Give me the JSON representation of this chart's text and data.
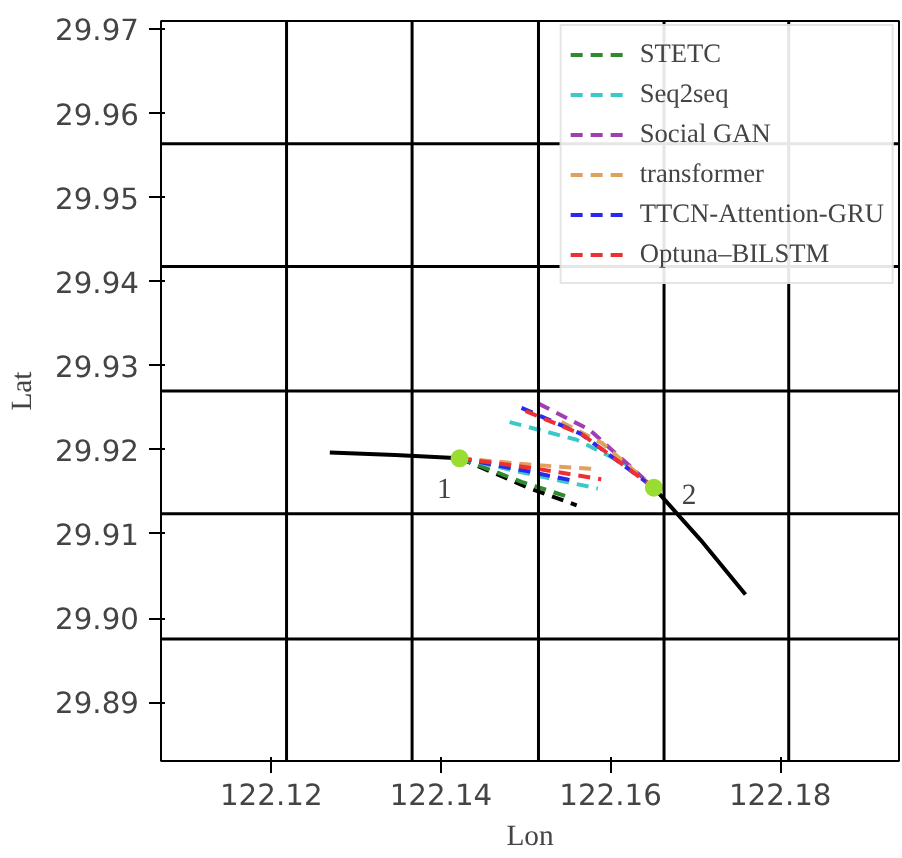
{
  "chart_data": {
    "type": "line",
    "xlabel": "Lon",
    "ylabel": "Lat",
    "xlim": [
      122.107,
      122.194
    ],
    "ylim": [
      29.883,
      29.971
    ],
    "xticks": [
      122.12,
      122.14,
      122.16,
      122.18
    ],
    "yticks": [
      {
        "value": 29.89,
        "label": "29.89"
      },
      {
        "value": 29.9,
        "label": "29.90"
      },
      {
        "value": 29.91,
        "label": "29.91"
      },
      {
        "value": 29.92,
        "label": "29.92"
      },
      {
        "value": 29.93,
        "label": "29.93"
      },
      {
        "value": 29.94,
        "label": "29.94"
      },
      {
        "value": 29.95,
        "label": "29.95"
      },
      {
        "value": 29.96,
        "label": "29.96"
      },
      {
        "value": 29.97,
        "label": "29.97"
      }
    ],
    "grid": false,
    "legend": "top right",
    "ref_lines": [
      {
        "axis": "x",
        "value": 122.1218,
        "color": "#000000"
      },
      {
        "axis": "x",
        "value": 122.1366,
        "color": "#000000"
      },
      {
        "axis": "x",
        "value": 122.1515,
        "color": "#000000"
      },
      {
        "axis": "x",
        "value": 122.1663,
        "color": "#000000"
      },
      {
        "axis": "x",
        "value": 122.181,
        "color": "#000000"
      },
      {
        "axis": "y",
        "value": 29.9564,
        "color": "#000000"
      },
      {
        "axis": "y",
        "value": 29.9418,
        "color": "#000000"
      },
      {
        "axis": "y",
        "value": 29.927,
        "color": "#000000"
      },
      {
        "axis": "y",
        "value": 29.9124,
        "color": "#000000"
      },
      {
        "axis": "y",
        "value": 29.8975,
        "color": "#000000"
      }
    ],
    "series": [
      {
        "color": "#000000",
        "line_style": "solid",
        "x": [
          122.1269,
          122.1346,
          122.1422,
          null,
          122.1651,
          122.1706,
          122.1759
        ],
        "values": [
          29.9197,
          29.9194,
          29.919,
          null,
          29.9155,
          29.9093,
          29.9028
        ]
      },
      {
        "color": "#000000",
        "line_style": "dashed",
        "x": [
          122.1422,
          122.1503,
          122.156
        ],
        "values": [
          29.919,
          29.9155,
          29.9134
        ]
      },
      {
        "name": "STETC",
        "color": "#2e8b2e",
        "line_style": "dashed",
        "x": [
          122.1422,
          122.1495,
          122.155
        ],
        "values": [
          29.919,
          29.9162,
          29.9144
        ]
      },
      {
        "name": "Seq2seq",
        "color": "#3cc8c8",
        "line_style": "dashed",
        "x": [
          122.1422,
          122.151,
          122.1585,
          null,
          122.1481,
          122.156,
          122.1624
        ],
        "values": [
          29.919,
          29.917,
          29.9154,
          null,
          29.9233,
          29.9212,
          29.918
        ]
      },
      {
        "name": "Social GAN",
        "color": "#a040b0",
        "line_style": "dashed",
        "x": [
          122.1515,
          122.1575,
          122.1651
        ],
        "values": [
          29.9255,
          29.9224,
          29.9155
        ]
      },
      {
        "name": "transformer",
        "color": "#e0a060",
        "line_style": "dashed",
        "x": [
          122.1422,
          122.151,
          122.1585,
          null,
          122.1542,
          122.159,
          122.1651
        ],
        "values": [
          29.919,
          29.9182,
          29.9177,
          null,
          29.9233,
          29.9208,
          29.9155
        ]
      },
      {
        "name": "TTCN-Attention-GRU",
        "color": "#2a2aee",
        "line_style": "dashed",
        "x": [
          122.1422,
          122.15,
          122.1558,
          null,
          122.1495,
          122.1565,
          122.1651
        ],
        "values": [
          29.919,
          29.9175,
          29.9163,
          null,
          29.925,
          29.9219,
          29.9155
        ]
      },
      {
        "name": "Optuna–BILSTM",
        "color": "#ee3030",
        "line_style": "dashed",
        "x": [
          122.1422,
          122.151,
          122.1589,
          null,
          122.15,
          122.1567,
          122.1651
        ],
        "values": [
          29.919,
          29.9178,
          29.9165,
          null,
          29.9246,
          29.9218,
          29.9155
        ]
      },
      {
        "type": "scatter",
        "marker": "circle",
        "color": "#99dd33",
        "x": [
          122.1422,
          122.1651
        ],
        "values": [
          29.919,
          29.9155
        ]
      }
    ],
    "annotations": [
      {
        "text": "1",
        "x": 122.1422,
        "y": 29.919
      },
      {
        "text": "2",
        "x": 122.1651,
        "y": 29.9155
      }
    ]
  }
}
